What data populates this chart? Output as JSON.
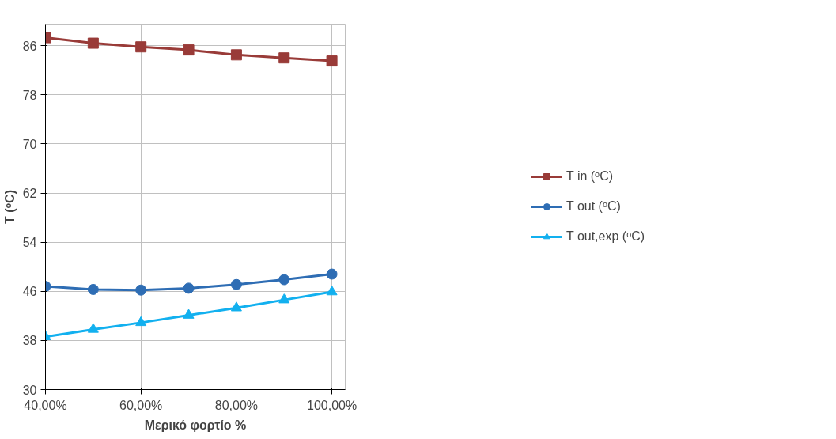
{
  "chart_data": {
    "type": "line",
    "xlabel": "Μερικό φορτίο %",
    "ylabel": "T (ᵒC)",
    "x": [
      40,
      50,
      60,
      70,
      80,
      90,
      100
    ],
    "xlim": [
      40,
      102.8
    ],
    "xticks": [
      {
        "value": 40,
        "label": "40,00%"
      },
      {
        "value": 60,
        "label": "60,00%"
      },
      {
        "value": 80,
        "label": "80,00%"
      },
      {
        "value": 100,
        "label": "100,00%"
      }
    ],
    "ylim": [
      30,
      89.5
    ],
    "yticks": [
      30,
      38,
      46,
      54,
      62,
      70,
      78,
      86
    ],
    "grid": true,
    "legend": "right",
    "line_style": "solid",
    "series": [
      {
        "name": "T in (ᵒC)",
        "color": "#993b38",
        "marker": "square",
        "values": [
          87.3,
          86.4,
          85.8,
          85.3,
          84.5,
          84.0,
          83.5
        ]
      },
      {
        "name": "T out (ᵒC)",
        "color": "#2e6db4",
        "marker": "circle",
        "values": [
          46.8,
          46.3,
          46.2,
          46.5,
          47.1,
          47.9,
          48.8
        ]
      },
      {
        "name": "T out,exp (ᵒC)",
        "color": "#12b0ef",
        "marker": "triangle",
        "values": [
          38.6,
          39.8,
          40.9,
          42.1,
          43.3,
          44.6,
          45.9
        ]
      }
    ]
  }
}
